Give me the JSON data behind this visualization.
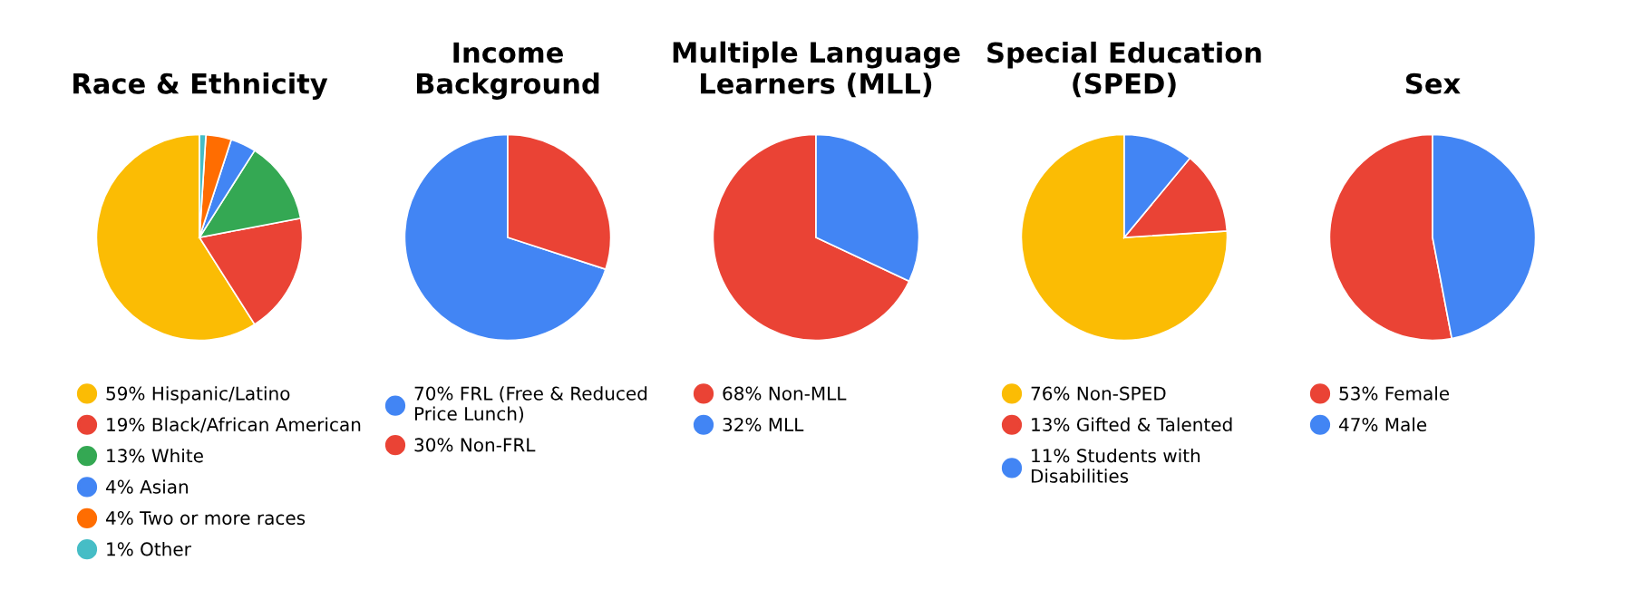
{
  "chart_data": [
    {
      "type": "pie",
      "title": "Race & Ethnicity",
      "categories": [
        "59% Hispanic/Latino",
        "19% Black/African American",
        "13% White",
        "4% Asian",
        "4% Two or more races",
        "1% Other"
      ],
      "values": [
        59,
        19,
        13,
        4,
        4,
        1
      ],
      "colors": [
        "#fbbc04",
        "#ea4335",
        "#34a853",
        "#4285f4",
        "#ff6d01",
        "#46bdc6"
      ],
      "legend": "bottom"
    },
    {
      "type": "pie",
      "title": "Income\nBackground",
      "categories": [
        "70% FRL (Free & Reduced Price Lunch)",
        "30% Non-FRL"
      ],
      "values": [
        70,
        30
      ],
      "colors": [
        "#4285f4",
        "#ea4335"
      ],
      "legend": "bottom"
    },
    {
      "type": "pie",
      "title": "Multiple Language\nLearners (MLL)",
      "categories": [
        "68% Non-MLL",
        "32% MLL"
      ],
      "values": [
        68,
        32
      ],
      "colors": [
        "#ea4335",
        "#4285f4"
      ],
      "legend": "bottom"
    },
    {
      "type": "pie",
      "title": "Special Education\n(SPED)",
      "categories": [
        "76% Non-SPED",
        "13% Gifted & Talented",
        "11% Students with Disabilities"
      ],
      "values": [
        76,
        13,
        11
      ],
      "colors": [
        "#fbbc04",
        "#ea4335",
        "#4285f4"
      ],
      "legend": "bottom"
    },
    {
      "type": "pie",
      "title": "Sex",
      "categories": [
        "53% Female",
        "47% Male"
      ],
      "values": [
        53,
        47
      ],
      "colors": [
        "#ea4335",
        "#4285f4"
      ],
      "legend": "bottom"
    }
  ]
}
